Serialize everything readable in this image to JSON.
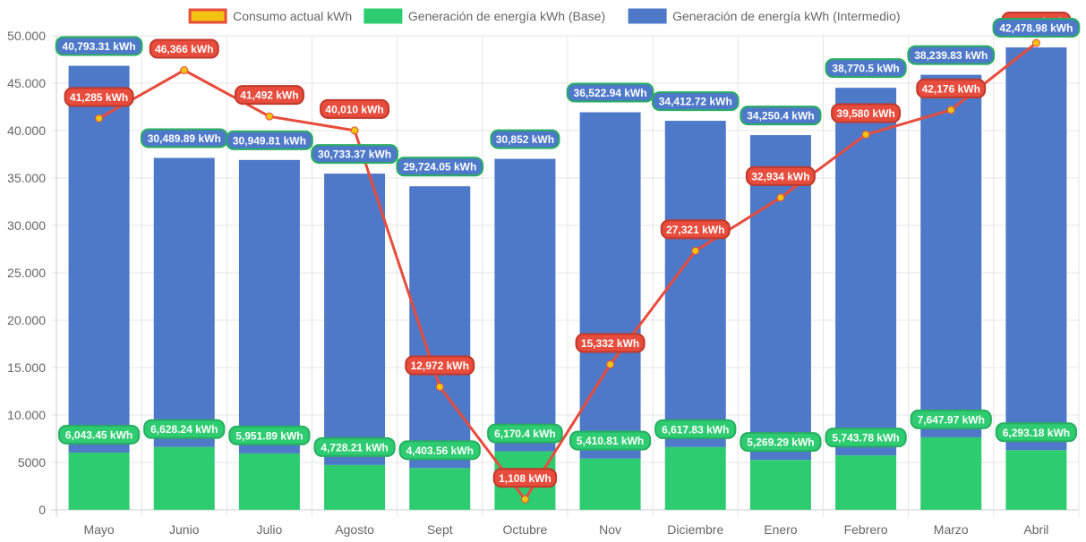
{
  "chart_data": {
    "type": "bar",
    "stacked": true,
    "title": "",
    "xlabel": "",
    "ylabel": "",
    "ylim": [
      0,
      50000
    ],
    "yticks": [
      "0",
      "5000",
      "10.000",
      "15.000",
      "20.000",
      "25.000",
      "30.000",
      "35.000",
      "40.000",
      "45.000",
      "50.000"
    ],
    "ytick_values": [
      0,
      5000,
      10000,
      15000,
      20000,
      25000,
      30000,
      35000,
      40000,
      45000,
      50000
    ],
    "grid": true,
    "legend_position": "top-center",
    "categories": [
      "Mayo",
      "Junio",
      "Julio",
      "Agosto",
      "Sept",
      "Octubre",
      "Nov",
      "Diciembre",
      "Enero",
      "Febrero",
      "Marzo",
      "Abril"
    ],
    "series": [
      {
        "name": "Consumo actual kWh",
        "type": "line",
        "color": "#e74c3c",
        "point_color": "#f1c40f",
        "values": [
          41285,
          46366,
          41492,
          40010,
          12972,
          1108,
          15332,
          27321,
          32934,
          39580,
          42176,
          49244
        ],
        "labels": [
          "41,285 kWh",
          "46,366 kWh",
          "41,492 kWh",
          "40,010 kWh",
          "12,972 kWh",
          "1,108 kWh",
          "15,332 kWh",
          "27,321 kWh",
          "32,934 kWh",
          "39,580 kWh",
          "42,176 kWh",
          "49,244 kWh"
        ]
      },
      {
        "name": "Generación de energía kWh (Base)",
        "type": "bar",
        "color": "#2ecc71",
        "values": [
          6043.45,
          6628.24,
          5951.89,
          4728.21,
          4403.56,
          6170.4,
          5410.81,
          6617.83,
          5269.29,
          5743.78,
          7647.97,
          6293.18
        ],
        "labels": [
          "6,043.45 kWh",
          "6,628.24 kWh",
          "5,951.89 kWh",
          "4,728.21 kWh",
          "4,403.56 kWh",
          "6,170.4 kWh",
          "5,410.81 kWh",
          "6,617.83 kWh",
          "5,269.29 kWh",
          "5,743.78 kWh",
          "7,647.97 kWh",
          "6,293.18 kWh"
        ]
      },
      {
        "name": "Generación de energía kWh (Intermedio)",
        "type": "bar",
        "color": "#4e79c9",
        "values": [
          40793.31,
          30489.89,
          30949.81,
          30733.37,
          29724.05,
          30852,
          36522.94,
          34412.72,
          34250.4,
          38770.5,
          38239.83,
          42478.98
        ],
        "labels": [
          "40,793.31 kWh",
          "30,489.89 kWh",
          "30,949.81 kWh",
          "30,733.37 kWh",
          "29,724.05 kWh",
          "30,852 kWh",
          "36,522.94 kWh",
          "34,412.72 kWh",
          "34,250.4 kWh",
          "38,770.5 kWh",
          "38,239.83 kWh",
          "42,478.98 kWh"
        ]
      }
    ]
  }
}
